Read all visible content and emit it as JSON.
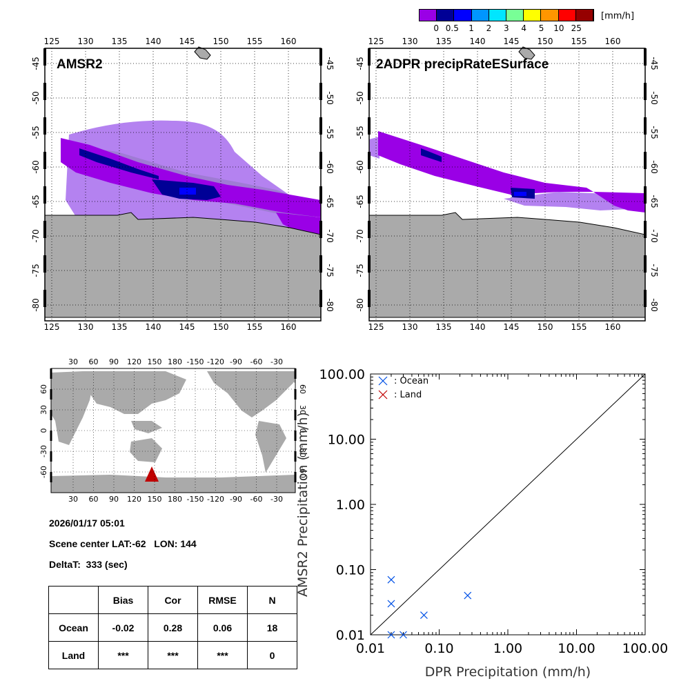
{
  "colorbar": {
    "unit": "[mm/h]",
    "ticks": [
      "0",
      "0.5",
      "1",
      "2",
      "3",
      "4",
      "5",
      "10",
      "25"
    ],
    "colors": [
      "#9a00e6",
      "#000096",
      "#0000ff",
      "#0096ff",
      "#00e6ff",
      "#78ff96",
      "#ffff00",
      "#ff9600",
      "#ff0000",
      "#960000"
    ]
  },
  "colors": {
    "land": "#aaaaaa",
    "ocean_marker": "#0050e6",
    "land_marker": "#c00000",
    "light_precip": "#b482f0",
    "mid_precip": "#9678c8"
  },
  "maps": {
    "lon_ticks": [
      "125",
      "130",
      "135",
      "140",
      "145",
      "150",
      "155",
      "160"
    ],
    "lat_ticks": [
      "-45",
      "-50",
      "-55",
      "-60",
      "-65",
      "-70",
      "-75",
      "-80"
    ],
    "left_title": "AMSR2",
    "right_title": "2ADPR precipRateESurface"
  },
  "globe": {
    "lon_ticks": [
      "30",
      "60",
      "90",
      "120",
      "150",
      "180",
      "-150",
      "-120",
      "-90",
      "-60",
      "-30"
    ],
    "lat_ticks": [
      "60",
      "30",
      "0",
      "-30",
      "-60"
    ]
  },
  "info": {
    "datetime": "2026/01/17 05:01",
    "center_label": "Scene center LAT:-62   LON: 144",
    "deltat_label": "DeltaT:  333 (sec)"
  },
  "stats": {
    "headers": [
      "Bias",
      "Cor",
      "RMSE",
      "N"
    ],
    "rows": [
      {
        "label": "Ocean",
        "values": [
          "-0.02",
          "0.28",
          "0.06",
          "18"
        ]
      },
      {
        "label": "Land",
        "values": [
          "***",
          "***",
          "***",
          "0"
        ]
      }
    ]
  },
  "chart_data": {
    "type": "scatter",
    "xscale": "log",
    "yscale": "log",
    "xlim": [
      0.01,
      100
    ],
    "ylim": [
      0.01,
      100
    ],
    "xlabel": "DPR Precipitation (mm/h)",
    "ylabel": "AMSR2 Precipitation (mm/h)",
    "tick_labels": [
      "0.01",
      "0.10",
      "1.00",
      "10.00",
      "100.00"
    ],
    "legend_placement": "top-left",
    "series": [
      {
        "name": ": Ocean",
        "color": "#0050e6",
        "points": [
          [
            0.02,
            0.07
          ],
          [
            0.02,
            0.03
          ],
          [
            0.02,
            0.01
          ],
          [
            0.03,
            0.01
          ],
          [
            0.06,
            0.02
          ],
          [
            0.26,
            0.04
          ]
        ]
      },
      {
        "name": ": Land",
        "color": "#c00000",
        "points": []
      }
    ],
    "one_to_one_line": true
  }
}
